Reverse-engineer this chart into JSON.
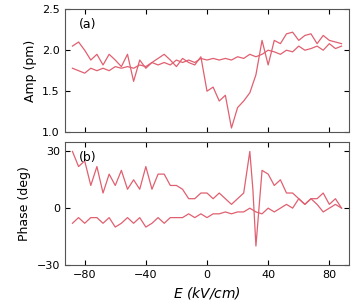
{
  "title_a": "(a)",
  "title_b": "(b)",
  "xlabel": "$E$ (kV/cm)",
  "ylabel_a": "Amp (pm)",
  "ylabel_b": "Phase (deg)",
  "xlim": [
    -93,
    93
  ],
  "ylim_a": [
    1.0,
    2.5
  ],
  "ylim_b": [
    -30,
    35
  ],
  "xticks": [
    -80,
    -40,
    0,
    40,
    80
  ],
  "yticks_a": [
    1.0,
    1.5,
    2.0,
    2.5
  ],
  "yticks_b": [
    -30,
    0,
    30
  ],
  "line_color": "#e06070",
  "bg_color": "#ffffff",
  "amp_fwd_x": [
    -88,
    -84,
    -80,
    -76,
    -72,
    -68,
    -64,
    -60,
    -56,
    -52,
    -48,
    -44,
    -40,
    -36,
    -32,
    -28,
    -24,
    -20,
    -16,
    -12,
    -8,
    -4,
    0,
    4,
    8,
    12,
    16,
    20,
    24,
    28,
    32,
    36,
    40,
    44,
    48,
    52,
    56,
    60,
    64,
    68,
    72,
    76,
    80,
    84,
    88
  ],
  "amp_fwd_y": [
    2.05,
    2.1,
    2.0,
    1.88,
    1.95,
    1.82,
    1.95,
    1.88,
    1.8,
    1.95,
    1.62,
    1.88,
    1.78,
    1.85,
    1.9,
    1.95,
    1.88,
    1.8,
    1.9,
    1.85,
    1.82,
    1.92,
    1.5,
    1.55,
    1.38,
    1.45,
    1.05,
    1.3,
    1.38,
    1.48,
    1.7,
    2.12,
    1.82,
    2.12,
    2.08,
    2.2,
    2.22,
    2.12,
    2.18,
    2.2,
    2.08,
    2.18,
    2.12,
    2.1,
    2.08
  ],
  "amp_ret_x": [
    88,
    84,
    80,
    76,
    72,
    68,
    64,
    60,
    56,
    52,
    48,
    44,
    40,
    36,
    32,
    28,
    24,
    20,
    16,
    12,
    8,
    4,
    0,
    -4,
    -8,
    -12,
    -16,
    -20,
    -24,
    -28,
    -32,
    -36,
    -40,
    -44,
    -48,
    -52,
    -56,
    -60,
    -64,
    -68,
    -72,
    -76,
    -80,
    -84,
    -88
  ],
  "amp_ret_y": [
    2.05,
    2.02,
    2.08,
    2.0,
    2.05,
    2.02,
    2.0,
    2.05,
    1.98,
    2.0,
    1.95,
    1.98,
    2.0,
    1.95,
    1.92,
    1.95,
    1.9,
    1.92,
    1.88,
    1.9,
    1.88,
    1.9,
    1.88,
    1.9,
    1.85,
    1.88,
    1.85,
    1.88,
    1.82,
    1.85,
    1.82,
    1.85,
    1.8,
    1.82,
    1.78,
    1.8,
    1.78,
    1.8,
    1.75,
    1.78,
    1.75,
    1.78,
    1.72,
    1.75,
    1.78
  ],
  "phase_fwd_x": [
    -88,
    -84,
    -80,
    -76,
    -72,
    -68,
    -64,
    -60,
    -56,
    -52,
    -48,
    -44,
    -40,
    -36,
    -32,
    -28,
    -24,
    -20,
    -16,
    -12,
    -8,
    -4,
    0,
    4,
    8,
    12,
    16,
    20,
    24,
    28,
    30,
    32,
    36,
    40,
    44,
    48,
    52,
    56,
    60,
    64,
    68,
    72,
    76,
    80,
    84,
    88
  ],
  "phase_fwd_y": [
    30,
    22,
    25,
    12,
    22,
    8,
    18,
    12,
    20,
    10,
    15,
    10,
    22,
    10,
    18,
    18,
    12,
    12,
    10,
    5,
    5,
    8,
    8,
    5,
    8,
    5,
    2,
    5,
    8,
    30,
    10,
    -20,
    20,
    18,
    12,
    15,
    8,
    8,
    5,
    2,
    5,
    2,
    -2,
    0,
    2,
    0
  ],
  "phase_ret_x": [
    88,
    84,
    80,
    76,
    72,
    68,
    64,
    60,
    56,
    52,
    48,
    44,
    40,
    36,
    32,
    28,
    24,
    20,
    16,
    12,
    8,
    4,
    0,
    -4,
    -8,
    -12,
    -16,
    -20,
    -24,
    -28,
    -32,
    -36,
    -40,
    -44,
    -48,
    -52,
    -56,
    -60,
    -64,
    -68,
    -72,
    -76,
    -80,
    -84,
    -88
  ],
  "phase_ret_y": [
    0,
    5,
    2,
    8,
    5,
    5,
    2,
    5,
    0,
    2,
    0,
    -2,
    0,
    -3,
    -2,
    0,
    -2,
    -2,
    -3,
    -2,
    -3,
    -3,
    -5,
    -3,
    -5,
    -3,
    -5,
    -5,
    -5,
    -8,
    -5,
    -8,
    -10,
    -5,
    -8,
    -5,
    -8,
    -10,
    -5,
    -8,
    -5,
    -5,
    -8,
    -5,
    -8
  ]
}
